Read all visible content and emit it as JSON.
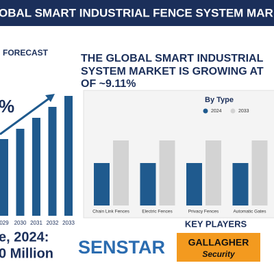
{
  "header": {
    "title": "OBAL SMART INDUSTRIAL FENCE SYSTEM MAR"
  },
  "forecast": {
    "label": "FORECAST",
    "cagr": "%",
    "market_line1": "e, 2024:",
    "market_line2": "0 Million"
  },
  "headline": {
    "lines": [
      "THE GLOBAL SMART INDUSTRIAL",
      "SYSTEM MARKET IS GROWING AT",
      "OF ~9.11%"
    ]
  },
  "key_players": {
    "title": "KEY PLAYERS",
    "players": [
      "SENSTAR",
      "GALLAGHER",
      "Security"
    ]
  },
  "chart_data": [
    {
      "type": "bar",
      "categories": [
        "029",
        "2030",
        "2031",
        "2032",
        "2033"
      ],
      "values": [
        112,
        127,
        143,
        159,
        175
      ],
      "color": "#1f5a8e",
      "ylim": [
        0,
        200
      ]
    },
    {
      "type": "grouped-bar",
      "title": "By Type",
      "categories": [
        "Chain Link Fences",
        "Electric Fences",
        "Privacy Fences",
        "Automatic Gates"
      ],
      "series": [
        {
          "name": "2024",
          "color": "#1f5a8e",
          "values": [
            62,
            62,
            62,
            62
          ]
        },
        {
          "name": "2033",
          "color": "#d3d3d3",
          "values": [
            95,
            95,
            95,
            95
          ]
        }
      ],
      "ylim": [
        0,
        100
      ]
    }
  ]
}
